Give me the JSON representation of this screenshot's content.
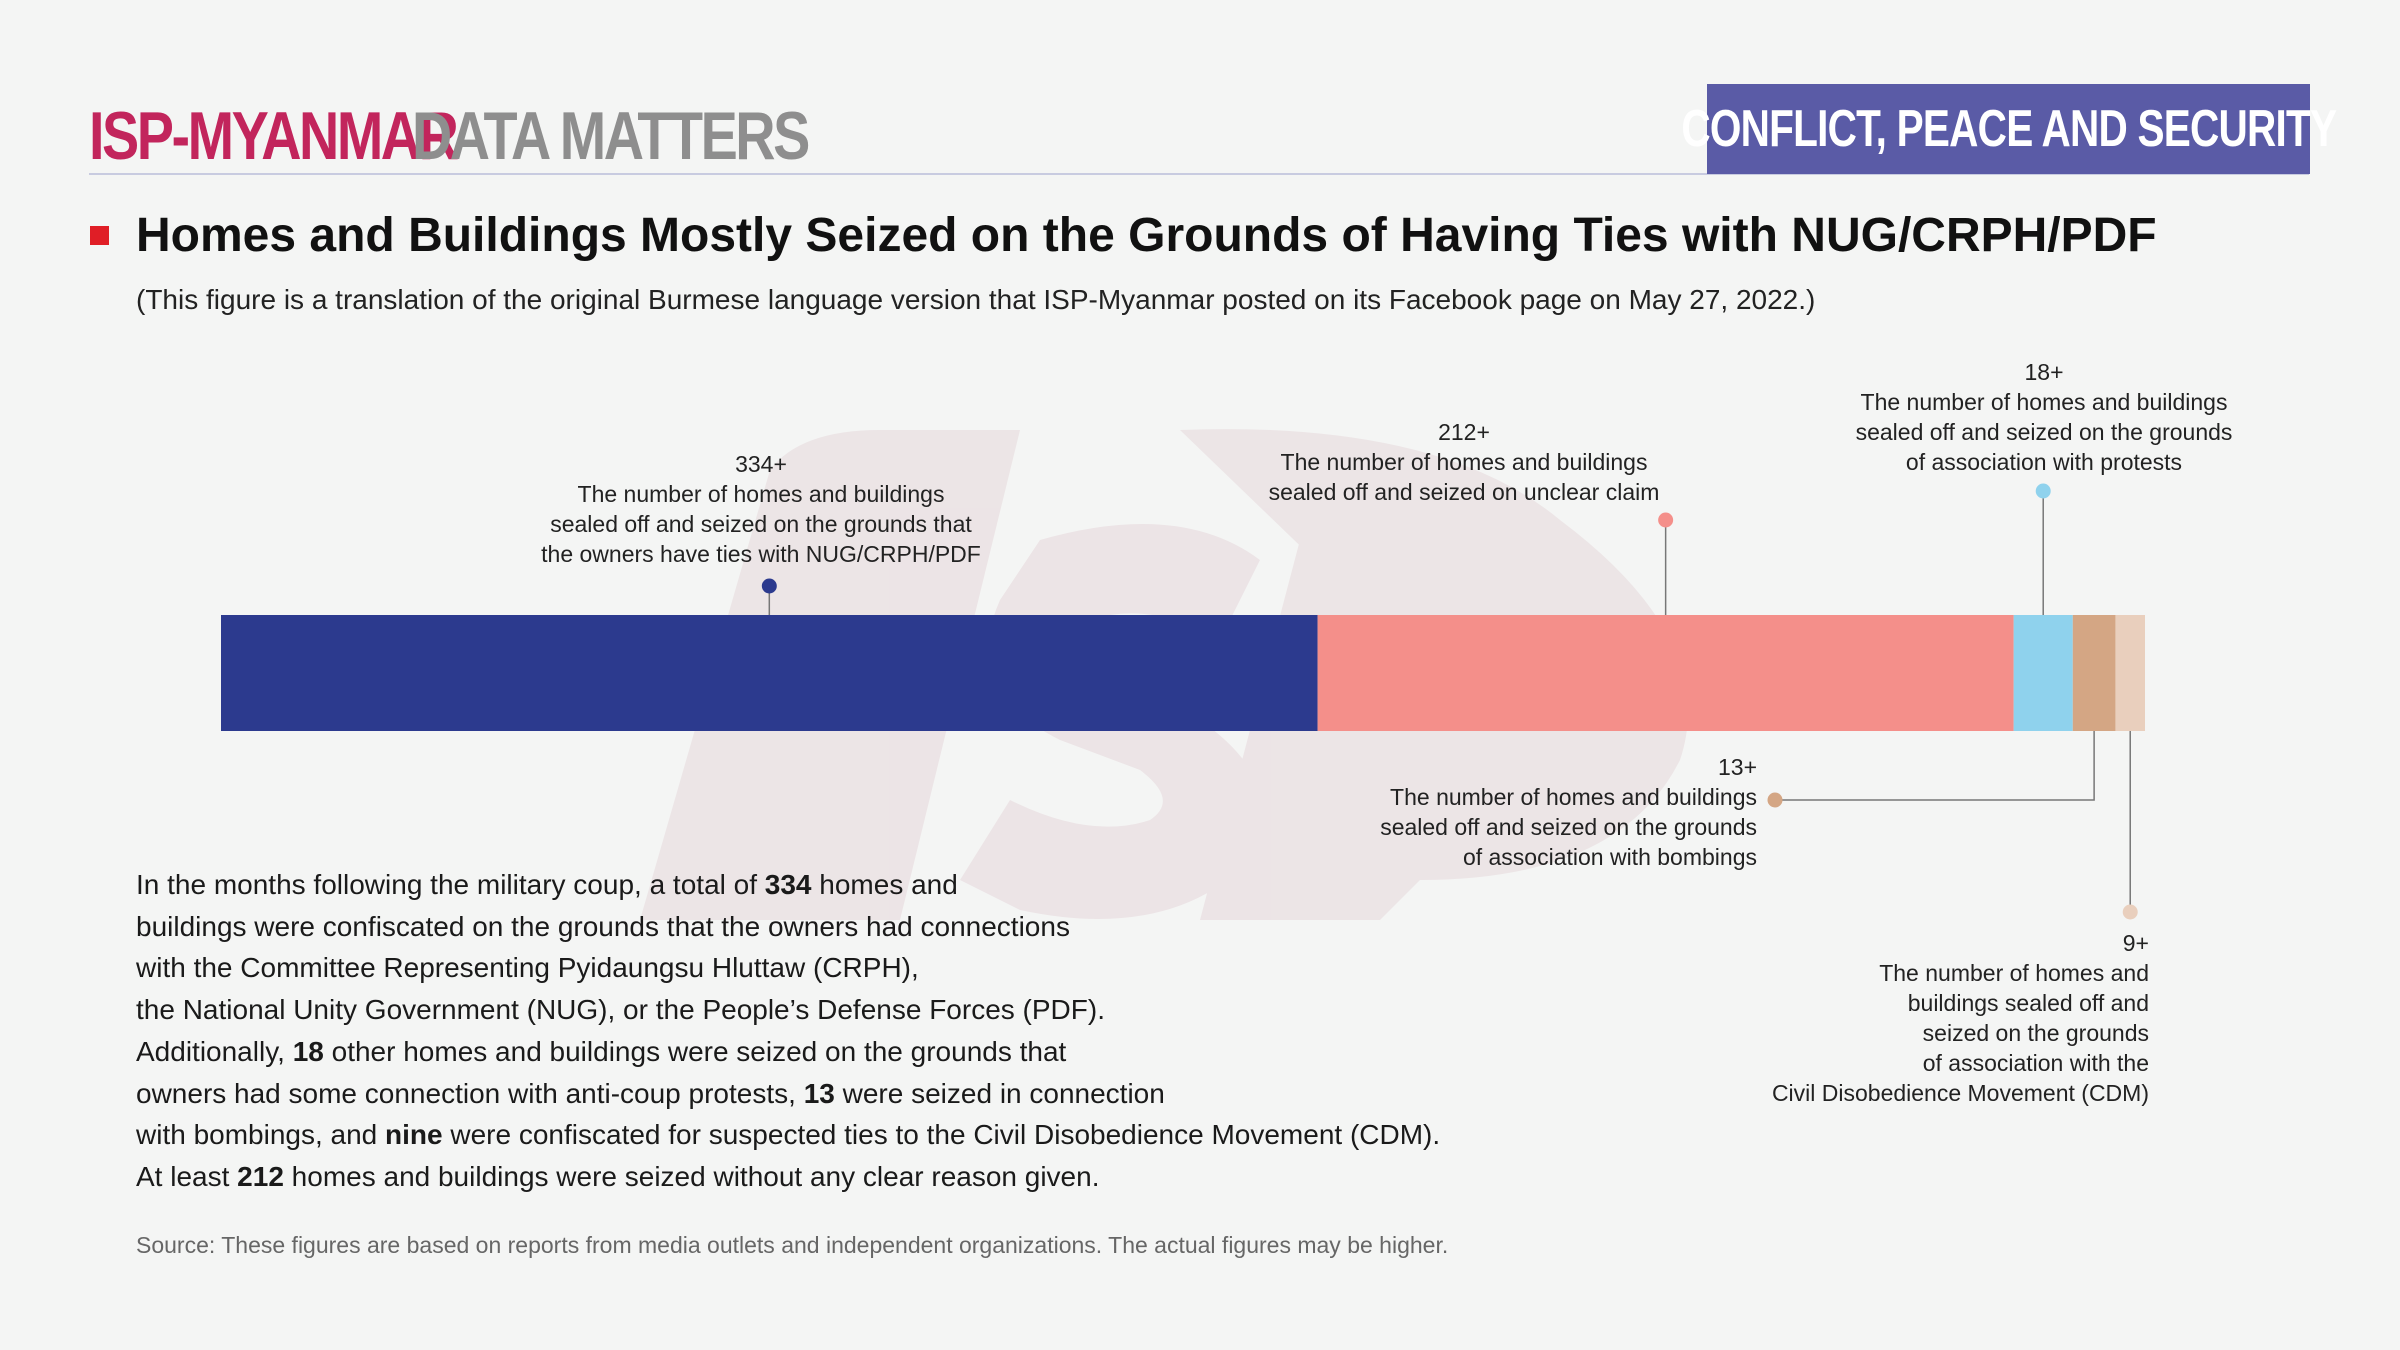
{
  "header": {
    "brand_primary": "ISP-MYANMAR",
    "brand_secondary": "DATA MATTERS",
    "category": "CONFLICT, PEACE AND SECURITY"
  },
  "title": "Homes and Buildings Mostly Seized on the Grounds of Having Ties with NUG/CRPH/PDF",
  "subtitle": "(This figure is a translation of the original Burmese language version that ISP-Myanmar posted on its Facebook page on May 27, 2022.)",
  "colors": {
    "brand_pink": "#c2255c",
    "badge": "#5a5ba6",
    "title_mark": "#e01e26"
  },
  "chart_data": {
    "type": "bar",
    "orientation": "horizontal-stacked",
    "series": [
      {
        "value": 334,
        "label": "334+",
        "lines": [
          "The number of homes and buildings",
          "sealed off and seized on the grounds that",
          "the owners have ties with NUG/CRPH/PDF"
        ],
        "color": "#2c3a8e",
        "label_align": "center"
      },
      {
        "value": 212,
        "label": "212+",
        "lines": [
          "The number of homes and buildings",
          "sealed off and seized on unclear claim"
        ],
        "color": "#f48f8a",
        "label_align": "center"
      },
      {
        "value": 18,
        "label": "18+",
        "lines": [
          "The number of homes and buildings",
          "sealed off and seized on the grounds",
          "of association with protests"
        ],
        "color": "#8fd2ed",
        "label_align": "center"
      },
      {
        "value": 13,
        "label": "13+",
        "lines": [
          "The number of homes and buildings",
          "sealed off and seized on the grounds",
          "of association with bombings"
        ],
        "color": "#d4a684",
        "label_align": "right"
      },
      {
        "value": 9,
        "label": "9+",
        "lines": [
          "The number of homes and",
          "buildings sealed off and",
          "seized on the grounds",
          "of association with the",
          "Civil Disobedience Movement (CDM)"
        ],
        "color": "#e9cfbd",
        "label_align": "right"
      }
    ]
  },
  "body": {
    "lines": [
      [
        {
          "t": "In the months following the military coup, a total of "
        },
        {
          "t": "334",
          "b": true
        },
        {
          "t": " homes and"
        }
      ],
      [
        {
          "t": "buildings were confiscated on the grounds that the owners had connections"
        }
      ],
      [
        {
          "t": "with the Committee Representing Pyidaungsu Hluttaw (CRPH),"
        }
      ],
      [
        {
          "t": "the National Unity Government (NUG), or the People’s Defense Forces (PDF)."
        }
      ],
      [
        {
          "t": "Additionally, "
        },
        {
          "t": "18",
          "b": true
        },
        {
          "t": " other homes and buildings were seized on the grounds that"
        }
      ],
      [
        {
          "t": "owners had some connection with anti-coup protests, "
        },
        {
          "t": "13",
          "b": true
        },
        {
          "t": " were seized in connection"
        }
      ],
      [
        {
          "t": "with bombings, and "
        },
        {
          "t": "nine",
          "b": true
        },
        {
          "t": " were confiscated for suspected ties to the Civil Disobedience Movement (CDM)."
        }
      ],
      [
        {
          "t": "At least "
        },
        {
          "t": "212",
          "b": true
        },
        {
          "t": " homes and buildings were seized without any clear reason given."
        }
      ]
    ]
  },
  "source": "Source: These figures are based on reports from media outlets and independent organizations. The actual figures may be higher."
}
